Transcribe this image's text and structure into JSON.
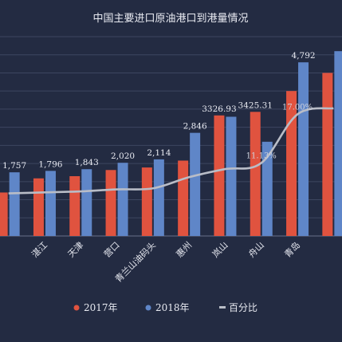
{
  "chart_data": {
    "type": "bar",
    "title": "中国主要进口原油港口到港量情况",
    "categories": [
      "",
      "湛江",
      "天津",
      "营口",
      "青兰山油码头",
      "惠州",
      "岚山",
      "舟山",
      "青岛",
      ""
    ],
    "series": [
      {
        "name": "2017年",
        "color": "#e0533f",
        "values": [
          1200,
          1590,
          1650,
          1820,
          1890,
          2080,
          3326.93,
          3425.31,
          4000,
          4500
        ]
      },
      {
        "name": "2018年",
        "color": "#5f86c8",
        "values": [
          1757,
          1796,
          1843,
          2020,
          2114,
          2846,
          3290,
          2600,
          4792,
          5100
        ]
      }
    ],
    "line": {
      "name": "百分比",
      "color": "#b9bdc7",
      "values": [
        0.21,
        0.215,
        0.22,
        0.23,
        0.235,
        0.29,
        0.33,
        0.36,
        0.6,
        0.63
      ]
    },
    "bar_labels": [
      {
        "index": 0,
        "series": 1,
        "text": "1,757"
      },
      {
        "index": 1,
        "series": 1,
        "text": "1,796"
      },
      {
        "index": 2,
        "series": 1,
        "text": "1,843"
      },
      {
        "index": 3,
        "series": 1,
        "text": "2,020"
      },
      {
        "index": 4,
        "series": 1,
        "text": "2,114"
      },
      {
        "index": 5,
        "series": 1,
        "text": "2,846"
      },
      {
        "index": 6,
        "series": 0,
        "text": "3326.93"
      },
      {
        "index": 7,
        "series": 0,
        "text": "3425.31"
      },
      {
        "index": 8,
        "series": 1,
        "text": "4,792"
      }
    ],
    "line_labels": [
      {
        "index": 7,
        "text": "11.13%"
      },
      {
        "index": 8,
        "text": "17.00%"
      }
    ],
    "ylim": [
      0,
      5500
    ],
    "grid": true,
    "legend": "bottom"
  }
}
